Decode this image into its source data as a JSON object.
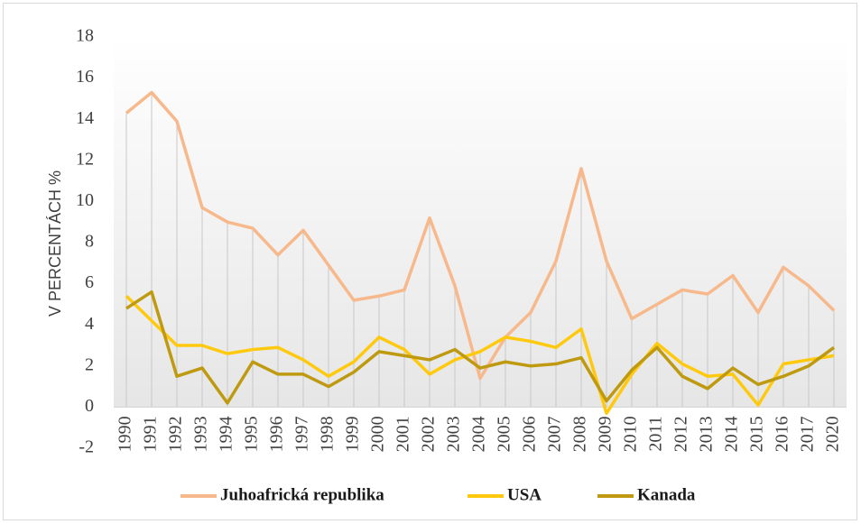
{
  "chart_data": {
    "type": "line",
    "y_label": "V PERCENTÁCH %",
    "categories": [
      "1990",
      "1991",
      "1992",
      "1993",
      "1994",
      "1995",
      "1996",
      "1997",
      "1998",
      "1999",
      "2000",
      "2001",
      "2002",
      "2003",
      "2004",
      "2005",
      "2006",
      "2007",
      "2008",
      "2009",
      "2010",
      "2011",
      "2012",
      "2013",
      "2014",
      "2015",
      "2016",
      "2017",
      "2020"
    ],
    "series": [
      {
        "name": "Juhoafrická republika",
        "color": "#f7b98c",
        "values": [
          14.3,
          15.3,
          13.9,
          9.7,
          9.0,
          8.7,
          7.4,
          8.6,
          6.9,
          5.2,
          5.4,
          5.7,
          9.2,
          5.9,
          1.4,
          3.4,
          4.6,
          7.1,
          11.6,
          7.1,
          4.3,
          5.0,
          5.7,
          5.5,
          6.4,
          4.6,
          6.8,
          5.9,
          4.7
        ]
      },
      {
        "name": "USA",
        "color": "#ffc90e",
        "values": [
          5.4,
          4.2,
          3.0,
          3.0,
          2.6,
          2.8,
          2.9,
          2.3,
          1.5,
          2.2,
          3.4,
          2.8,
          1.6,
          2.3,
          2.7,
          3.4,
          3.2,
          2.9,
          3.8,
          -0.3,
          1.6,
          3.1,
          2.1,
          1.5,
          1.6,
          0.1,
          2.1,
          2.3,
          2.5
        ]
      },
      {
        "name": "Kanada",
        "color": "#bf9a10",
        "values": [
          4.8,
          5.6,
          1.5,
          1.9,
          0.2,
          2.2,
          1.6,
          1.6,
          1.0,
          1.7,
          2.7,
          2.5,
          2.3,
          2.8,
          1.9,
          2.2,
          2.0,
          2.1,
          2.4,
          0.3,
          1.8,
          2.9,
          1.5,
          0.9,
          1.9,
          1.1,
          1.5,
          2.0,
          2.9
        ]
      }
    ],
    "ylim": [
      -2,
      18
    ],
    "yticks": [
      -2,
      0,
      2,
      4,
      6,
      8,
      10,
      12,
      14,
      16,
      18
    ],
    "drop_lines": true,
    "legend": "bottom"
  }
}
